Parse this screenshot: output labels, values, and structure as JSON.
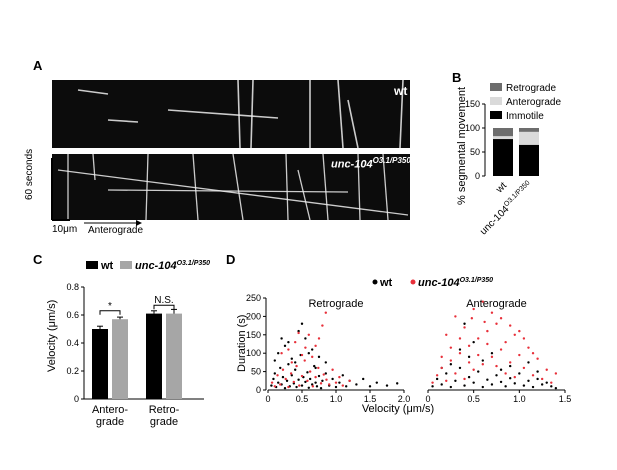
{
  "panel_labels": {
    "a": "A",
    "b": "B",
    "c": "C",
    "d": "D"
  },
  "colors": {
    "wt": "#000000",
    "mutant_bar": "#a6a6a6",
    "mutant_dot": "#e8303a",
    "retrograde": "#6d6d6d",
    "anterograde": "#dadada",
    "immotile": "#000000"
  },
  "kymograph": {
    "top_label": "wt",
    "bottom_label_main": "unc-104",
    "bottom_label_sup": "O3.1/P350",
    "time_bar": "60 seconds",
    "scale_bar": "10μm",
    "direction": "Anterograde"
  },
  "chart_data": [
    {
      "id": "B",
      "type": "bar",
      "stacked": true,
      "ylabel": "% segmental movement",
      "ylim": [
        0,
        150
      ],
      "yticks": [
        "0",
        "50",
        "100",
        "150"
      ],
      "categories": [
        "wt",
        "unc-104"
      ],
      "category_sup": [
        "",
        "O3.1/P350"
      ],
      "series": [
        {
          "name": "Immotile",
          "values": [
            77,
            65
          ]
        },
        {
          "name": "Anterograde",
          "values": [
            6,
            27
          ]
        },
        {
          "name": "Retrograde",
          "values": [
            17,
            8
          ]
        }
      ]
    },
    {
      "id": "C",
      "type": "bar",
      "ylabel": "Velocity (μm/s)",
      "ylim": [
        0,
        0.8
      ],
      "yticks": [
        "0",
        "0.2",
        "0.4",
        "0.6",
        "0.8"
      ],
      "categories": [
        "Antero-\ngrade",
        "Retro-\ngrade"
      ],
      "series": [
        {
          "name": "wt",
          "values": [
            0.5,
            0.61
          ],
          "errors": [
            0.02,
            0.02
          ]
        },
        {
          "name": "unc-104",
          "name_sup": "O3.1/P350",
          "values": [
            0.57,
            0.61
          ],
          "errors": [
            0.015,
            0.03
          ]
        }
      ],
      "annotations": [
        "*",
        "N.S."
      ]
    },
    {
      "id": "D",
      "type": "scatter",
      "ylabel": "Duration (s)",
      "xlabel": "Velocity (μm/s)",
      "ylim": [
        0,
        250
      ],
      "yticks": [
        "0",
        "50",
        "100",
        "150",
        "200",
        "250"
      ],
      "legend": [
        {
          "name": "wt"
        },
        {
          "name": "unc-104",
          "sup": "O3.1/P350"
        }
      ],
      "subplots": [
        {
          "title": "Retrograde",
          "xlim": [
            0,
            2.0
          ],
          "xticks": [
            "0",
            "0.5",
            "1.0",
            "1.5",
            "2.0"
          ]
        },
        {
          "title": "Anterograde",
          "xlim": [
            0,
            1.5
          ],
          "xticks": [
            "0",
            "0.5",
            "1.0",
            "1.5"
          ]
        }
      ],
      "series": [
        {
          "name": "wt",
          "points": [
            [
              0.05,
              12
            ],
            [
              0.08,
              30
            ],
            [
              0.1,
              45
            ],
            [
              0.12,
              8
            ],
            [
              0.15,
              20
            ],
            [
              0.18,
              60
            ],
            [
              0.2,
              15
            ],
            [
              0.22,
              35
            ],
            [
              0.25,
              5
            ],
            [
              0.28,
              25
            ],
            [
              0.3,
              70
            ],
            [
              0.32,
              10
            ],
            [
              0.35,
              40
            ],
            [
              0.38,
              18
            ],
            [
              0.4,
              55
            ],
            [
              0.42,
              8
            ],
            [
              0.45,
              28
            ],
            [
              0.48,
              95
            ],
            [
              0.5,
              12
            ],
            [
              0.52,
              35
            ],
            [
              0.55,
              22
            ],
            [
              0.58,
              48
            ],
            [
              0.6,
              6
            ],
            [
              0.62,
              30
            ],
            [
              0.65,
              15
            ],
            [
              0.68,
              65
            ],
            [
              0.7,
              20
            ],
            [
              0.72,
              10
            ],
            [
              0.75,
              38
            ],
            [
              0.78,
              5
            ],
            [
              0.8,
              25
            ],
            [
              0.85,
              45
            ],
            [
              0.9,
              12
            ],
            [
              0.95,
              30
            ],
            [
              1.0,
              8
            ],
            [
              1.05,
              20
            ],
            [
              1.1,
              40
            ],
            [
              1.15,
              10
            ],
            [
              1.2,
              25
            ],
            [
              1.3,
              15
            ],
            [
              1.4,
              30
            ],
            [
              1.5,
              10
            ],
            [
              1.6,
              20
            ],
            [
              1.75,
              12
            ],
            [
              1.9,
              18
            ],
            [
              0.15,
              100
            ],
            [
              0.25,
              120
            ],
            [
              0.35,
              85
            ],
            [
              0.55,
              140
            ],
            [
              0.45,
              160
            ],
            [
              0.65,
              110
            ],
            [
              0.3,
              130
            ],
            [
              0.75,
              90
            ],
            [
              0.85,
              75
            ],
            [
              0.2,
              140
            ],
            [
              0.1,
              80
            ],
            [
              0.6,
              100
            ],
            [
              0.4,
              75
            ],
            [
              0.5,
              180
            ],
            [
              0.7,
              60
            ]
          ]
        },
        {
          "name": "unc-104",
          "points": [
            [
              0.06,
              20
            ],
            [
              0.1,
              10
            ],
            [
              0.14,
              40
            ],
            [
              0.18,
              15
            ],
            [
              0.22,
              55
            ],
            [
              0.26,
              30
            ],
            [
              0.3,
              8
            ],
            [
              0.34,
              45
            ],
            [
              0.38,
              22
            ],
            [
              0.42,
              65
            ],
            [
              0.46,
              12
            ],
            [
              0.5,
              38
            ],
            [
              0.54,
              80
            ],
            [
              0.58,
              25
            ],
            [
              0.62,
              50
            ],
            [
              0.66,
              10
            ],
            [
              0.7,
              35
            ],
            [
              0.74,
              60
            ],
            [
              0.78,
              18
            ],
            [
              0.82,
              42
            ],
            [
              0.86,
              28
            ],
            [
              0.9,
              15
            ],
            [
              0.95,
              55
            ],
            [
              1.0,
              20
            ],
            [
              1.05,
              35
            ],
            [
              1.1,
              12
            ],
            [
              1.2,
              25
            ],
            [
              0.3,
              110
            ],
            [
              0.4,
              130
            ],
            [
              0.5,
              95
            ],
            [
              0.6,
              150
            ],
            [
              0.7,
              120
            ],
            [
              0.8,
              175
            ],
            [
              0.85,
              210
            ],
            [
              0.2,
              100
            ],
            [
              0.45,
              155
            ],
            [
              0.65,
              90
            ],
            [
              0.55,
              115
            ],
            [
              0.35,
              75
            ],
            [
              0.75,
              140
            ]
          ]
        },
        {
          "name": "wt",
          "subplot": 1,
          "points": [
            [
              0.05,
              10
            ],
            [
              0.1,
              30
            ],
            [
              0.15,
              15
            ],
            [
              0.2,
              45
            ],
            [
              0.25,
              8
            ],
            [
              0.3,
              25
            ],
            [
              0.35,
              60
            ],
            [
              0.4,
              12
            ],
            [
              0.45,
              35
            ],
            [
              0.5,
              20
            ],
            [
              0.55,
              50
            ],
            [
              0.6,
              8
            ],
            [
              0.65,
              28
            ],
            [
              0.7,
              15
            ],
            [
              0.75,
              40
            ],
            [
              0.8,
              22
            ],
            [
              0.85,
              10
            ],
            [
              0.9,
              32
            ],
            [
              0.95,
              18
            ],
            [
              1.0,
              45
            ],
            [
              1.05,
              12
            ],
            [
              1.1,
              25
            ],
            [
              1.15,
              8
            ],
            [
              1.2,
              30
            ],
            [
              1.25,
              15
            ],
            [
              1.3,
              20
            ],
            [
              1.35,
              10
            ],
            [
              1.4,
              5
            ],
            [
              0.25,
              70
            ],
            [
              0.45,
              90
            ],
            [
              0.6,
              80
            ],
            [
              0.35,
              110
            ],
            [
              0.7,
              100
            ],
            [
              0.9,
              65
            ],
            [
              1.1,
              75
            ],
            [
              0.15,
              60
            ],
            [
              0.5,
              130
            ],
            [
              0.8,
              55
            ],
            [
              1.2,
              50
            ],
            [
              0.4,
              180
            ]
          ]
        },
        {
          "name": "unc-104",
          "subplot": 1,
          "points": [
            [
              0.05,
              20
            ],
            [
              0.1,
              40
            ],
            [
              0.15,
              60
            ],
            [
              0.2,
              25
            ],
            [
              0.25,
              80
            ],
            [
              0.3,
              45
            ],
            [
              0.35,
              100
            ],
            [
              0.4,
              30
            ],
            [
              0.45,
              120
            ],
            [
              0.5,
              55
            ],
            [
              0.55,
              140
            ],
            [
              0.6,
              70
            ],
            [
              0.65,
              160
            ],
            [
              0.7,
              90
            ],
            [
              0.75,
              180
            ],
            [
              0.8,
              110
            ],
            [
              0.85,
              130
            ],
            [
              0.9,
              75
            ],
            [
              0.95,
              150
            ],
            [
              1.0,
              95
            ],
            [
              1.05,
              60
            ],
            [
              1.1,
              115
            ],
            [
              1.15,
              40
            ],
            [
              1.2,
              85
            ],
            [
              1.25,
              30
            ],
            [
              1.3,
              55
            ],
            [
              1.35,
              20
            ],
            [
              1.4,
              45
            ],
            [
              0.3,
              200
            ],
            [
              0.5,
              220
            ],
            [
              0.6,
              240
            ],
            [
              0.7,
              210
            ],
            [
              0.4,
              170
            ],
            [
              0.8,
              195
            ],
            [
              0.9,
              175
            ],
            [
              1.0,
              160
            ],
            [
              0.2,
              150
            ],
            [
              0.55,
              95
            ],
            [
              0.65,
              125
            ],
            [
              0.75,
              65
            ],
            [
              0.85,
              45
            ],
            [
              0.35,
              140
            ],
            [
              0.45,
              75
            ],
            [
              0.25,
              115
            ],
            [
              0.15,
              90
            ],
            [
              1.15,
              100
            ],
            [
              0.95,
              35
            ],
            [
              1.05,
              140
            ],
            [
              0.62,
              185
            ],
            [
              0.48,
              195
            ]
          ]
        }
      ]
    }
  ]
}
